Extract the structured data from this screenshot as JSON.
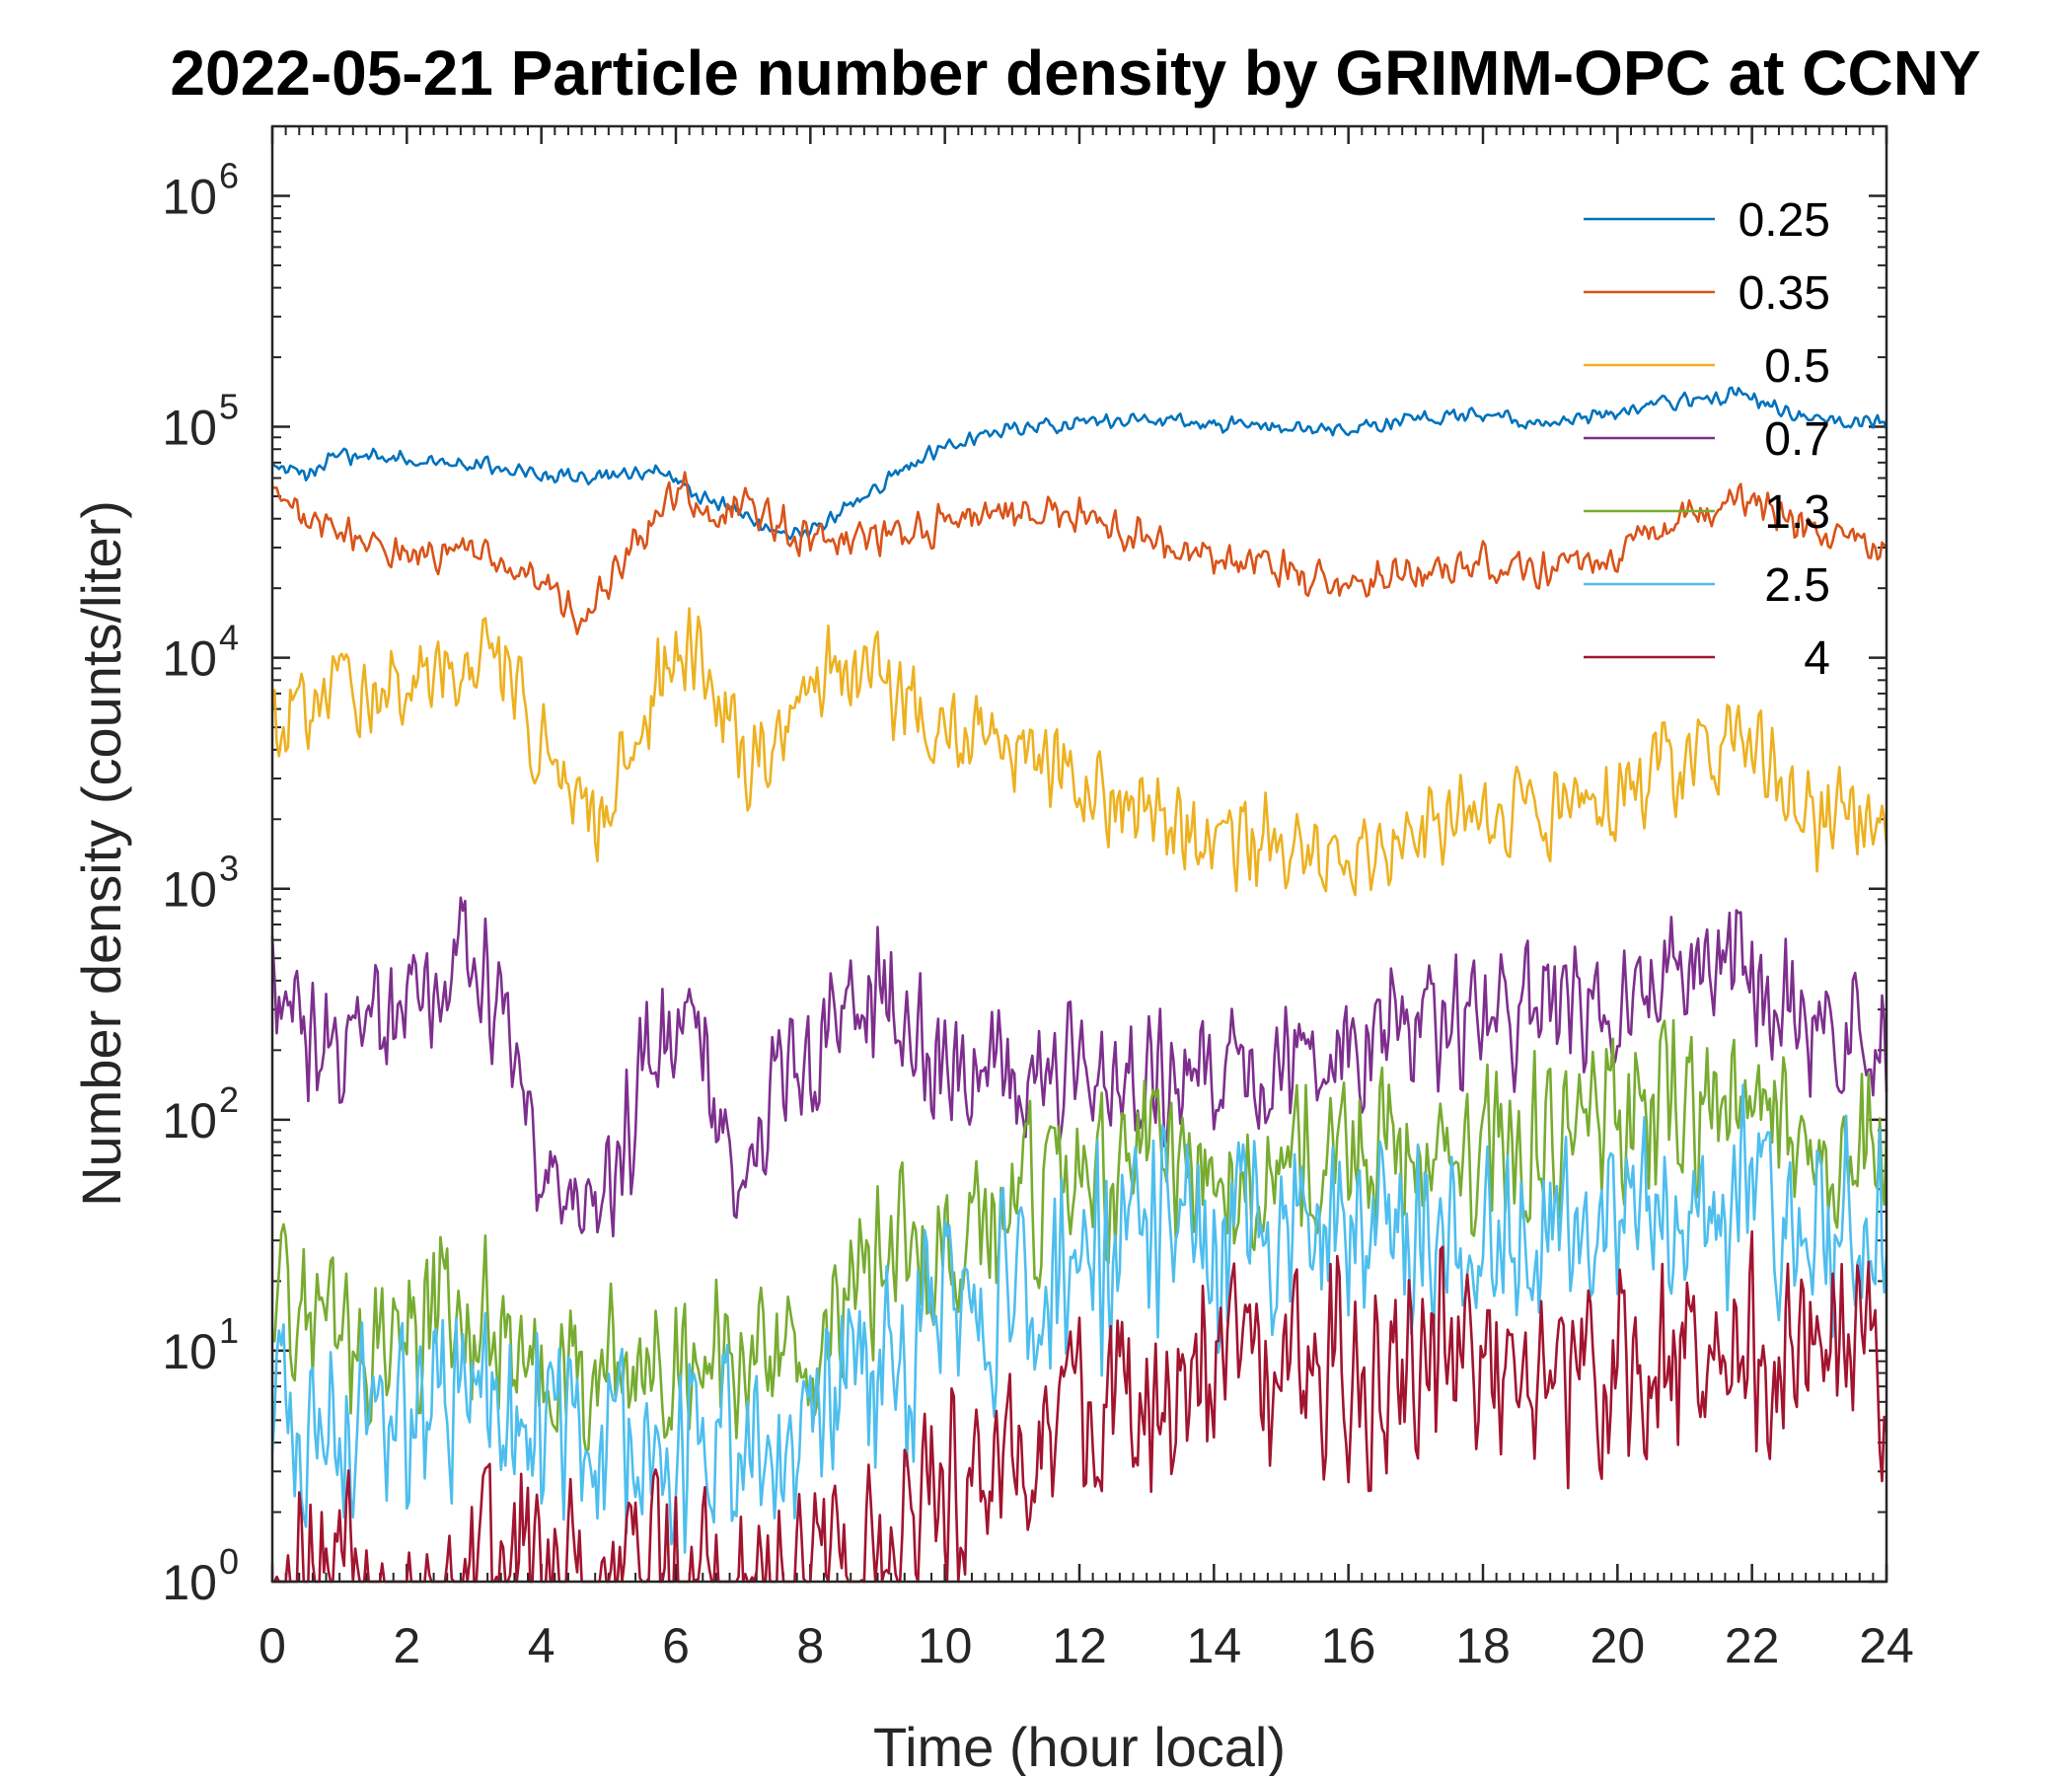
{
  "chart_data": {
    "type": "line",
    "title": "2022-05-21 Particle number density by GRIMM-OPC at CCNY",
    "xlabel": "Time (hour local)",
    "ylabel": "Number density (counts/liter)",
    "yscale": "log",
    "xlim": [
      0,
      24
    ],
    "ylim": [
      1,
      2000000
    ],
    "x_ticks": [
      0,
      2,
      4,
      6,
      8,
      10,
      12,
      14,
      16,
      18,
      20,
      22,
      24
    ],
    "y_tick_exponents": [
      0,
      1,
      2,
      3,
      4,
      5,
      6
    ],
    "y_tick_base": "10",
    "legend_position": "top-right",
    "series": [
      {
        "name": "0.25",
        "color": "#0072BD",
        "noise": 0.04,
        "x": [
          0,
          0.5,
          1,
          2,
          3,
          4,
          5,
          5.8,
          6.3,
          6.8,
          7.5,
          8,
          9,
          10,
          11,
          12,
          13,
          14,
          15,
          16,
          17,
          18,
          19,
          20,
          21,
          21.8,
          22.5,
          23,
          24
        ],
        "y": [
          68000,
          62000,
          75000,
          72000,
          70000,
          62000,
          60000,
          65000,
          50000,
          45000,
          33000,
          35000,
          55000,
          85000,
          98000,
          105000,
          108000,
          103000,
          100000,
          96000,
          108000,
          112000,
          102000,
          115000,
          130000,
          140000,
          118000,
          108000,
          103000
        ]
      },
      {
        "name": "0.35",
        "color": "#D95319",
        "noise": 0.1,
        "x": [
          0,
          0.5,
          1,
          2,
          3,
          3.5,
          4,
          4.6,
          5.2,
          6,
          6.5,
          7,
          7.5,
          8,
          9,
          10,
          11,
          12,
          13,
          14,
          15,
          16,
          17,
          18,
          19,
          20,
          21,
          21.8,
          22.5,
          23,
          24
        ],
        "y": [
          50000,
          42000,
          35000,
          28000,
          28000,
          25000,
          22000,
          15000,
          25000,
          55000,
          45000,
          48000,
          38000,
          32000,
          33000,
          38000,
          43000,
          40000,
          33000,
          25000,
          25000,
          19000,
          24000,
          26000,
          24000,
          28000,
          38000,
          48000,
          40000,
          33000,
          29000
        ]
      },
      {
        "name": "0.5",
        "color": "#EDB120",
        "noise": 0.25,
        "x": [
          0,
          0.5,
          1,
          2,
          3,
          3.5,
          4,
          4.5,
          5,
          5.5,
          6,
          6.5,
          7,
          7.5,
          8,
          8.5,
          9,
          10,
          11,
          12,
          13,
          14,
          15,
          16,
          17,
          18,
          19,
          20,
          21,
          21.8,
          22.5,
          23,
          24
        ],
        "y": [
          4500,
          6000,
          7000,
          8500,
          10000,
          8000,
          4000,
          2000,
          2500,
          6000,
          10500,
          9000,
          3500,
          5000,
          7000,
          9000,
          8000,
          5500,
          4000,
          3000,
          2000,
          1500,
          1500,
          1300,
          1700,
          2000,
          2000,
          2500,
          3500,
          4500,
          2800,
          2000,
          1700
        ]
      },
      {
        "name": "0.7",
        "color": "#7E2F8E",
        "noise": 0.35,
        "x": [
          0,
          0.5,
          1,
          2,
          2.7,
          3.3,
          3.7,
          4,
          4.5,
          5,
          5.5,
          6,
          6.3,
          6.7,
          7,
          7.5,
          8,
          8.3,
          9,
          10,
          11,
          12,
          13,
          14,
          15,
          16,
          17,
          18,
          19,
          20,
          21,
          21.8,
          22.5,
          23,
          24
        ],
        "y": [
          400,
          250,
          200,
          300,
          500,
          350,
          200,
          60,
          40,
          40,
          150,
          300,
          350,
          80,
          60,
          150,
          150,
          300,
          350,
          180,
          150,
          150,
          150,
          150,
          180,
          200,
          230,
          280,
          300,
          350,
          450,
          500,
          300,
          250,
          200
        ]
      },
      {
        "name": "1.3",
        "color": "#77AC30",
        "noise": 0.45,
        "x": [
          0,
          1,
          2,
          3,
          4,
          5,
          6,
          7,
          7.5,
          8,
          8.5,
          9,
          10,
          11,
          12,
          13,
          14,
          15,
          16,
          17,
          18,
          19,
          20,
          21,
          21.8,
          22.5,
          23,
          24
        ],
        "y": [
          18,
          11,
          12,
          14,
          9,
          9,
          9,
          8,
          9,
          10,
          16,
          22,
          32,
          45,
          55,
          60,
          60,
          65,
          70,
          75,
          80,
          85,
          95,
          110,
          130,
          110,
          80,
          70
        ]
      },
      {
        "name": "2.5",
        "color": "#4DBEEE",
        "noise": 0.55,
        "x": [
          0,
          1,
          2,
          3,
          4,
          5,
          6,
          7,
          7.5,
          8,
          9,
          10,
          11,
          12,
          13,
          14,
          15,
          16,
          17,
          18,
          19,
          20,
          21,
          21.8,
          22.5,
          23,
          24
        ],
        "y": [
          6,
          5,
          5,
          5,
          4,
          4,
          4,
          4,
          4,
          5,
          8,
          12,
          18,
          25,
          30,
          32,
          32,
          32,
          33,
          35,
          35,
          35,
          40,
          45,
          38,
          32,
          30
        ]
      },
      {
        "name": "4",
        "color": "#A2142F",
        "noise": 0.55,
        "x": [
          0,
          1,
          2,
          3,
          4,
          5,
          6,
          7,
          8,
          8.5,
          9,
          10,
          11,
          12,
          13,
          14,
          15,
          16,
          17,
          18,
          19,
          20,
          21,
          21.8,
          22.5,
          23,
          24
        ],
        "y": [
          1.1,
          1,
          1,
          1,
          1,
          1,
          1,
          1,
          1,
          1.2,
          1.5,
          2.5,
          4,
          6,
          7,
          8,
          8,
          8,
          8,
          8,
          8,
          8,
          9,
          11,
          9,
          8,
          8
        ]
      }
    ]
  }
}
